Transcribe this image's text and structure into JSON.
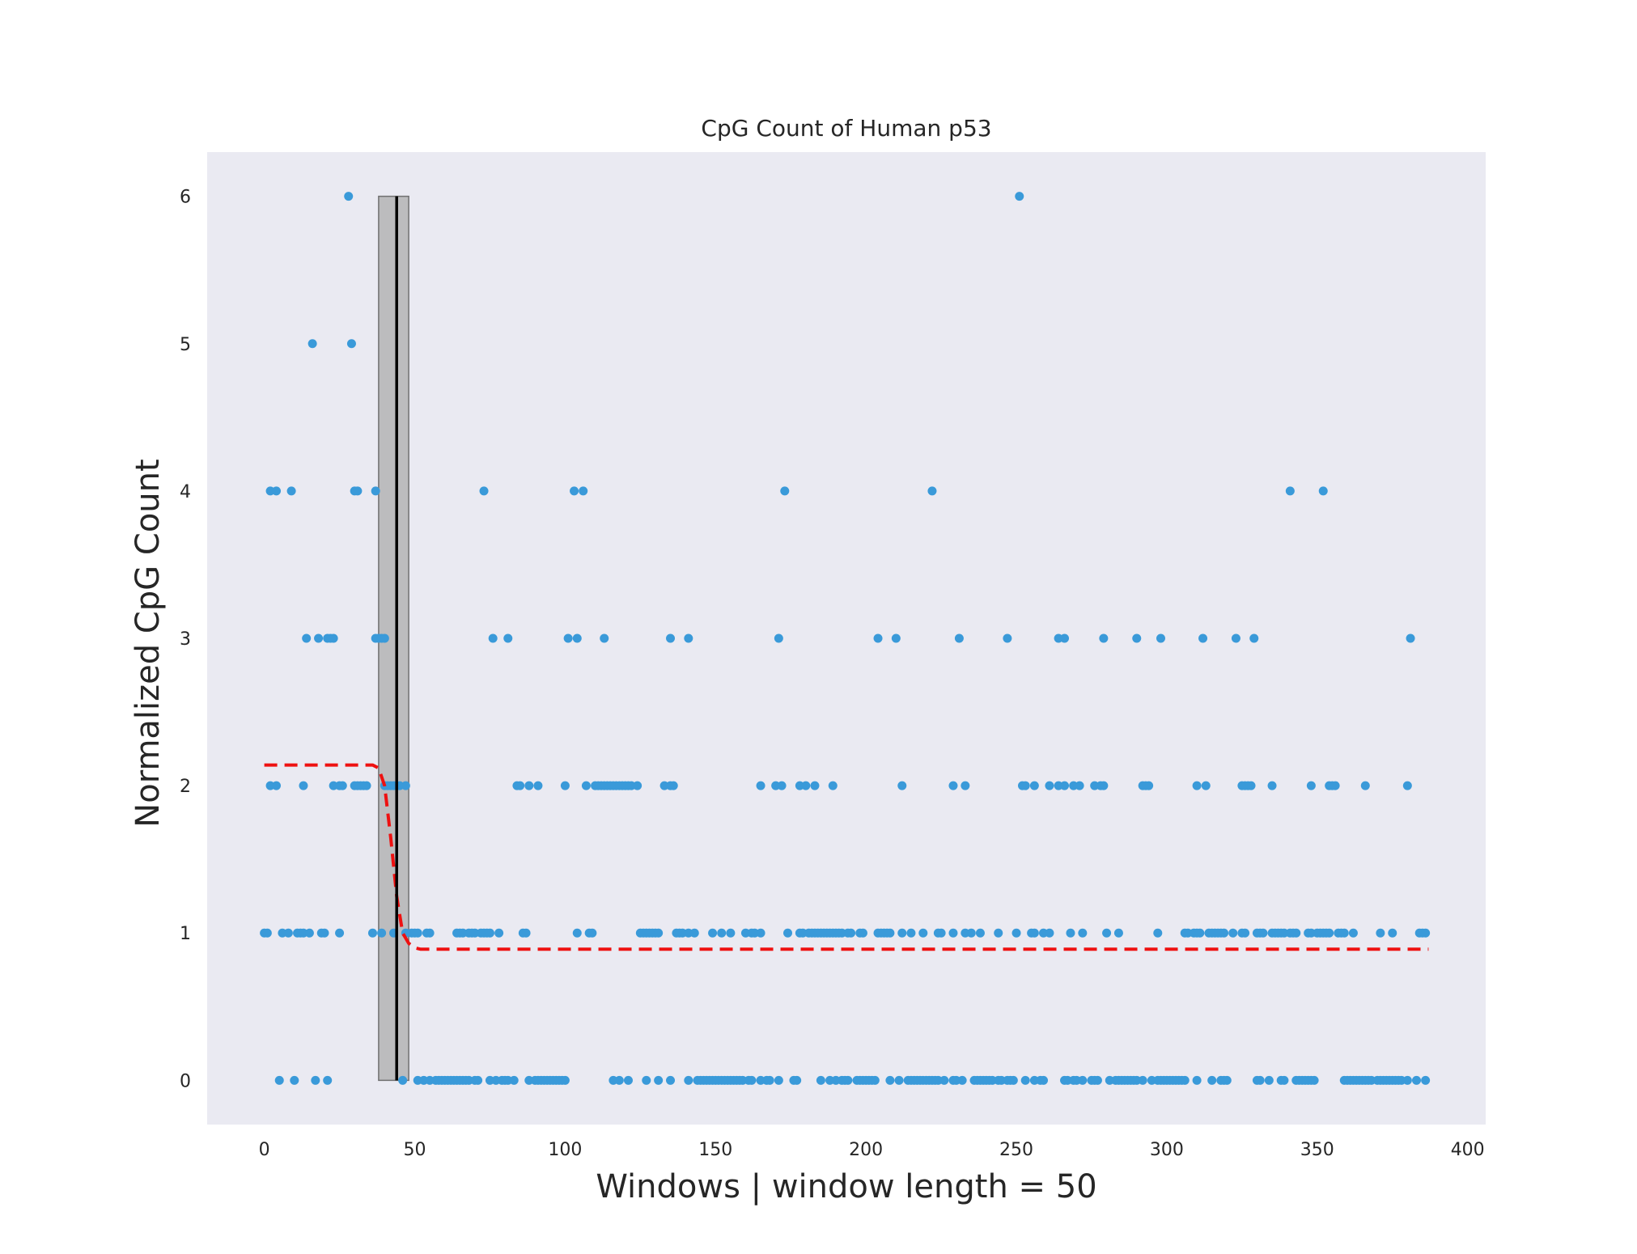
{
  "chart_data": {
    "type": "scatter",
    "title": "CpG Count of Human p53",
    "xlabel": "Windows | window length = 50",
    "ylabel": "Normalized CpG Count",
    "xlim": [
      -19,
      406
    ],
    "ylim": [
      -0.3,
      6.3
    ],
    "xticks": [
      0,
      50,
      100,
      150,
      200,
      250,
      300,
      350,
      400
    ],
    "yticks": [
      0,
      1,
      2,
      3,
      4,
      5,
      6
    ],
    "grid": false,
    "background_color": "#eaeaf2",
    "point_color": "#3a9ad9",
    "changepoint": {
      "x": 44,
      "interval": [
        38,
        48
      ],
      "ymin": 0,
      "ymax": 6,
      "line_color": "#000000",
      "band_color": "#a8a8a8"
    },
    "fit": {
      "style": "dashed",
      "color": "#ee1111",
      "x": [
        0,
        36,
        38,
        40,
        42,
        44,
        46,
        48,
        50,
        52,
        55,
        387
      ],
      "y": [
        2.14,
        2.14,
        2.12,
        2.0,
        1.65,
        1.25,
        1.0,
        0.93,
        0.9,
        0.89,
        0.89,
        0.89
      ]
    },
    "points": {
      "0": [
        5,
        10,
        17,
        21,
        46,
        51,
        53,
        55,
        57,
        58,
        59,
        60,
        61,
        62,
        63,
        64,
        65,
        66,
        67,
        68,
        70,
        71,
        75,
        77,
        79,
        80,
        81,
        83,
        88,
        90,
        91,
        92,
        93,
        94,
        95,
        96,
        97,
        98,
        99,
        100,
        116,
        118,
        121,
        127,
        131,
        135,
        141,
        144,
        145,
        146,
        147,
        148,
        149,
        150,
        151,
        152,
        153,
        154,
        155,
        156,
        157,
        158,
        159,
        161,
        162,
        165,
        167,
        168,
        171,
        176,
        177,
        185,
        188,
        190,
        192,
        193,
        194,
        197,
        198,
        199,
        200,
        201,
        202,
        203,
        208,
        211,
        214,
        215,
        216,
        217,
        218,
        219,
        220,
        221,
        222,
        223,
        224,
        226,
        229,
        230,
        232,
        236,
        237,
        238,
        239,
        240,
        241,
        242,
        244,
        245,
        247,
        248,
        249,
        253,
        256,
        258,
        259,
        266,
        267,
        269,
        270,
        272,
        275,
        276,
        277,
        281,
        283,
        284,
        285,
        286,
        287,
        288,
        289,
        290,
        292,
        295,
        297,
        298,
        299,
        300,
        301,
        302,
        303,
        304,
        305,
        306,
        310,
        315,
        318,
        319,
        320,
        330,
        331,
        334,
        338,
        339,
        343,
        344,
        345,
        346,
        347,
        348,
        349,
        359,
        360,
        361,
        362,
        363,
        364,
        365,
        366,
        367,
        368,
        370,
        371,
        372,
        373,
        374,
        375,
        376,
        377,
        378,
        380,
        383,
        386
      ],
      "1": [
        0,
        1,
        6,
        8,
        11,
        12,
        13,
        15,
        19,
        20,
        25,
        36,
        39,
        43,
        47,
        49,
        50,
        51,
        54,
        55,
        64,
        65,
        66,
        68,
        69,
        70,
        72,
        73,
        74,
        75,
        78,
        86,
        87,
        104,
        108,
        109,
        125,
        126,
        127,
        128,
        129,
        130,
        131,
        137,
        138,
        139,
        141,
        143,
        149,
        152,
        155,
        160,
        162,
        163,
        165,
        174,
        178,
        179,
        181,
        182,
        183,
        184,
        185,
        186,
        187,
        188,
        189,
        190,
        191,
        192,
        194,
        195,
        198,
        199,
        204,
        205,
        206,
        207,
        208,
        212,
        215,
        219,
        224,
        225,
        229,
        233,
        235,
        238,
        244,
        250,
        255,
        256,
        259,
        261,
        268,
        272,
        280,
        284,
        297,
        306,
        307,
        309,
        310,
        311,
        314,
        315,
        316,
        317,
        318,
        319,
        322,
        325,
        326,
        330,
        331,
        332,
        335,
        336,
        337,
        338,
        339,
        341,
        342,
        343,
        347,
        348,
        350,
        351,
        352,
        353,
        354,
        357,
        358,
        359,
        362,
        371,
        375,
        384,
        385,
        386
      ],
      "2": [
        2,
        4,
        13,
        23,
        25,
        26,
        30,
        31,
        32,
        33,
        34,
        40,
        41,
        42,
        43,
        45,
        47,
        84,
        85,
        88,
        91,
        100,
        107,
        110,
        111,
        112,
        113,
        114,
        115,
        116,
        117,
        118,
        119,
        120,
        121,
        122,
        124,
        133,
        135,
        136,
        165,
        170,
        172,
        178,
        180,
        183,
        189,
        212,
        229,
        233,
        252,
        253,
        256,
        261,
        264,
        266,
        269,
        271,
        276,
        278,
        279,
        292,
        293,
        294,
        310,
        313,
        325,
        326,
        327,
        328,
        335,
        348,
        354,
        355,
        356,
        366,
        380
      ],
      "3": [
        14,
        18,
        21,
        22,
        23,
        37,
        38,
        39,
        40,
        76,
        81,
        101,
        104,
        113,
        135,
        141,
        171,
        204,
        210,
        231,
        247,
        264,
        266,
        279,
        290,
        298,
        312,
        323,
        329,
        381
      ],
      "4": [
        2,
        4,
        9,
        30,
        31,
        37,
        73,
        103,
        106,
        173,
        222,
        341,
        352
      ],
      "5": [
        16,
        29
      ],
      "6": [
        28,
        251
      ]
    }
  }
}
